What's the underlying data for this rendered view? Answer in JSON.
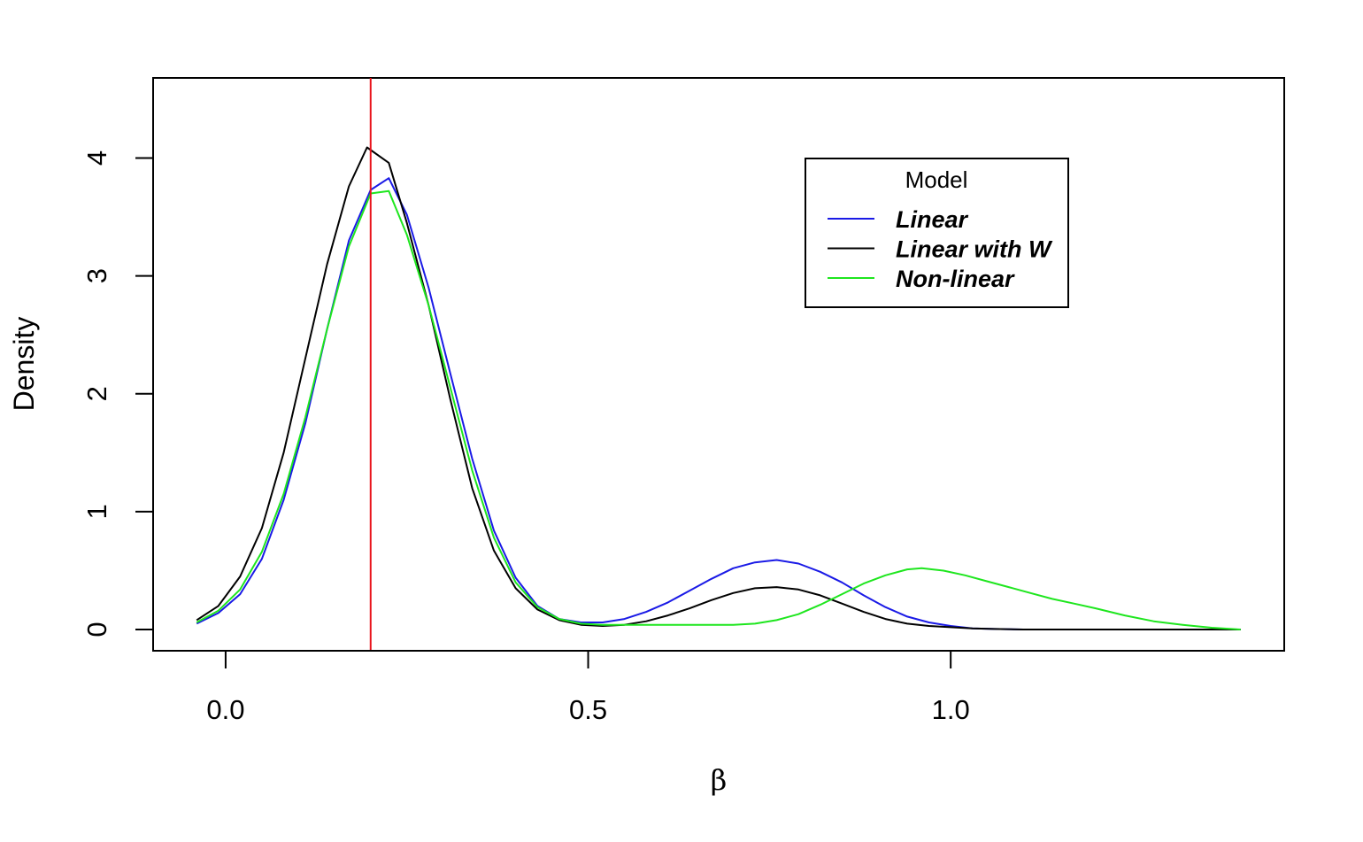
{
  "chart_data": {
    "type": "line",
    "title": "",
    "xlabel": "β",
    "ylabel": "Density",
    "xlim": [
      -0.1,
      1.46
    ],
    "ylim": [
      -0.18,
      4.68
    ],
    "x_ticks": [
      {
        "value": 0.0,
        "label": "0.0"
      },
      {
        "value": 0.5,
        "label": "0.5"
      },
      {
        "value": 1.0,
        "label": "1.0"
      }
    ],
    "y_ticks": [
      {
        "value": 0,
        "label": "0"
      },
      {
        "value": 1,
        "label": "1"
      },
      {
        "value": 2,
        "label": "2"
      },
      {
        "value": 3,
        "label": "3"
      },
      {
        "value": 4,
        "label": "4"
      }
    ],
    "reference_line": {
      "x": 0.2,
      "color": "#e8131b"
    },
    "legend": {
      "title": "Model",
      "position": "top-right"
    },
    "grid": false,
    "series": [
      {
        "name": "Linear",
        "color": "#1a1ae6",
        "x": [
          -0.04,
          -0.01,
          0.02,
          0.05,
          0.08,
          0.11,
          0.14,
          0.17,
          0.2,
          0.225,
          0.25,
          0.28,
          0.31,
          0.34,
          0.37,
          0.4,
          0.43,
          0.46,
          0.49,
          0.52,
          0.55,
          0.58,
          0.61,
          0.64,
          0.67,
          0.7,
          0.73,
          0.76,
          0.79,
          0.82,
          0.85,
          0.88,
          0.91,
          0.94,
          0.97,
          1.0,
          1.03,
          1.06,
          1.1,
          1.15,
          1.2,
          1.25,
          1.3,
          1.35,
          1.4
        ],
        "y": [
          0.05,
          0.14,
          0.3,
          0.6,
          1.1,
          1.75,
          2.55,
          3.3,
          3.73,
          3.83,
          3.52,
          2.9,
          2.17,
          1.45,
          0.84,
          0.44,
          0.2,
          0.09,
          0.06,
          0.06,
          0.09,
          0.15,
          0.23,
          0.33,
          0.43,
          0.52,
          0.57,
          0.59,
          0.56,
          0.49,
          0.4,
          0.29,
          0.19,
          0.11,
          0.06,
          0.03,
          0.01,
          0.005,
          0.0,
          0.0,
          0.0,
          0.0,
          0.0,
          0.0,
          0.0
        ]
      },
      {
        "name": "Linear with W",
        "color": "#000000",
        "x": [
          -0.04,
          -0.01,
          0.02,
          0.05,
          0.08,
          0.11,
          0.14,
          0.17,
          0.195,
          0.225,
          0.25,
          0.28,
          0.31,
          0.34,
          0.37,
          0.4,
          0.43,
          0.46,
          0.49,
          0.52,
          0.55,
          0.58,
          0.61,
          0.64,
          0.67,
          0.7,
          0.73,
          0.76,
          0.79,
          0.82,
          0.85,
          0.88,
          0.91,
          0.94,
          0.97,
          1.0,
          1.03,
          1.06,
          1.1,
          1.15,
          1.2,
          1.25,
          1.3,
          1.35,
          1.4
        ],
        "y": [
          0.08,
          0.2,
          0.45,
          0.86,
          1.5,
          2.3,
          3.1,
          3.76,
          4.09,
          3.96,
          3.45,
          2.75,
          1.95,
          1.2,
          0.67,
          0.35,
          0.17,
          0.08,
          0.04,
          0.03,
          0.04,
          0.07,
          0.12,
          0.18,
          0.25,
          0.31,
          0.35,
          0.36,
          0.34,
          0.29,
          0.22,
          0.15,
          0.09,
          0.05,
          0.03,
          0.02,
          0.01,
          0.005,
          0.0,
          0.0,
          0.0,
          0.0,
          0.0,
          0.0,
          0.0
        ]
      },
      {
        "name": "Non-linear",
        "color": "#1ee61e",
        "x": [
          -0.04,
          -0.01,
          0.02,
          0.05,
          0.08,
          0.11,
          0.14,
          0.17,
          0.2,
          0.225,
          0.25,
          0.28,
          0.31,
          0.34,
          0.37,
          0.4,
          0.43,
          0.46,
          0.49,
          0.52,
          0.55,
          0.6,
          0.65,
          0.7,
          0.73,
          0.76,
          0.79,
          0.82,
          0.85,
          0.88,
          0.91,
          0.94,
          0.96,
          0.99,
          1.02,
          1.05,
          1.08,
          1.11,
          1.14,
          1.17,
          1.2,
          1.24,
          1.28,
          1.32,
          1.36,
          1.4
        ],
        "y": [
          0.06,
          0.16,
          0.34,
          0.66,
          1.15,
          1.8,
          2.55,
          3.25,
          3.7,
          3.72,
          3.35,
          2.75,
          2.05,
          1.35,
          0.78,
          0.4,
          0.19,
          0.09,
          0.05,
          0.04,
          0.04,
          0.04,
          0.04,
          0.04,
          0.05,
          0.08,
          0.13,
          0.21,
          0.3,
          0.39,
          0.46,
          0.51,
          0.52,
          0.5,
          0.46,
          0.41,
          0.36,
          0.31,
          0.26,
          0.22,
          0.18,
          0.12,
          0.07,
          0.04,
          0.015,
          0.0
        ]
      }
    ]
  }
}
